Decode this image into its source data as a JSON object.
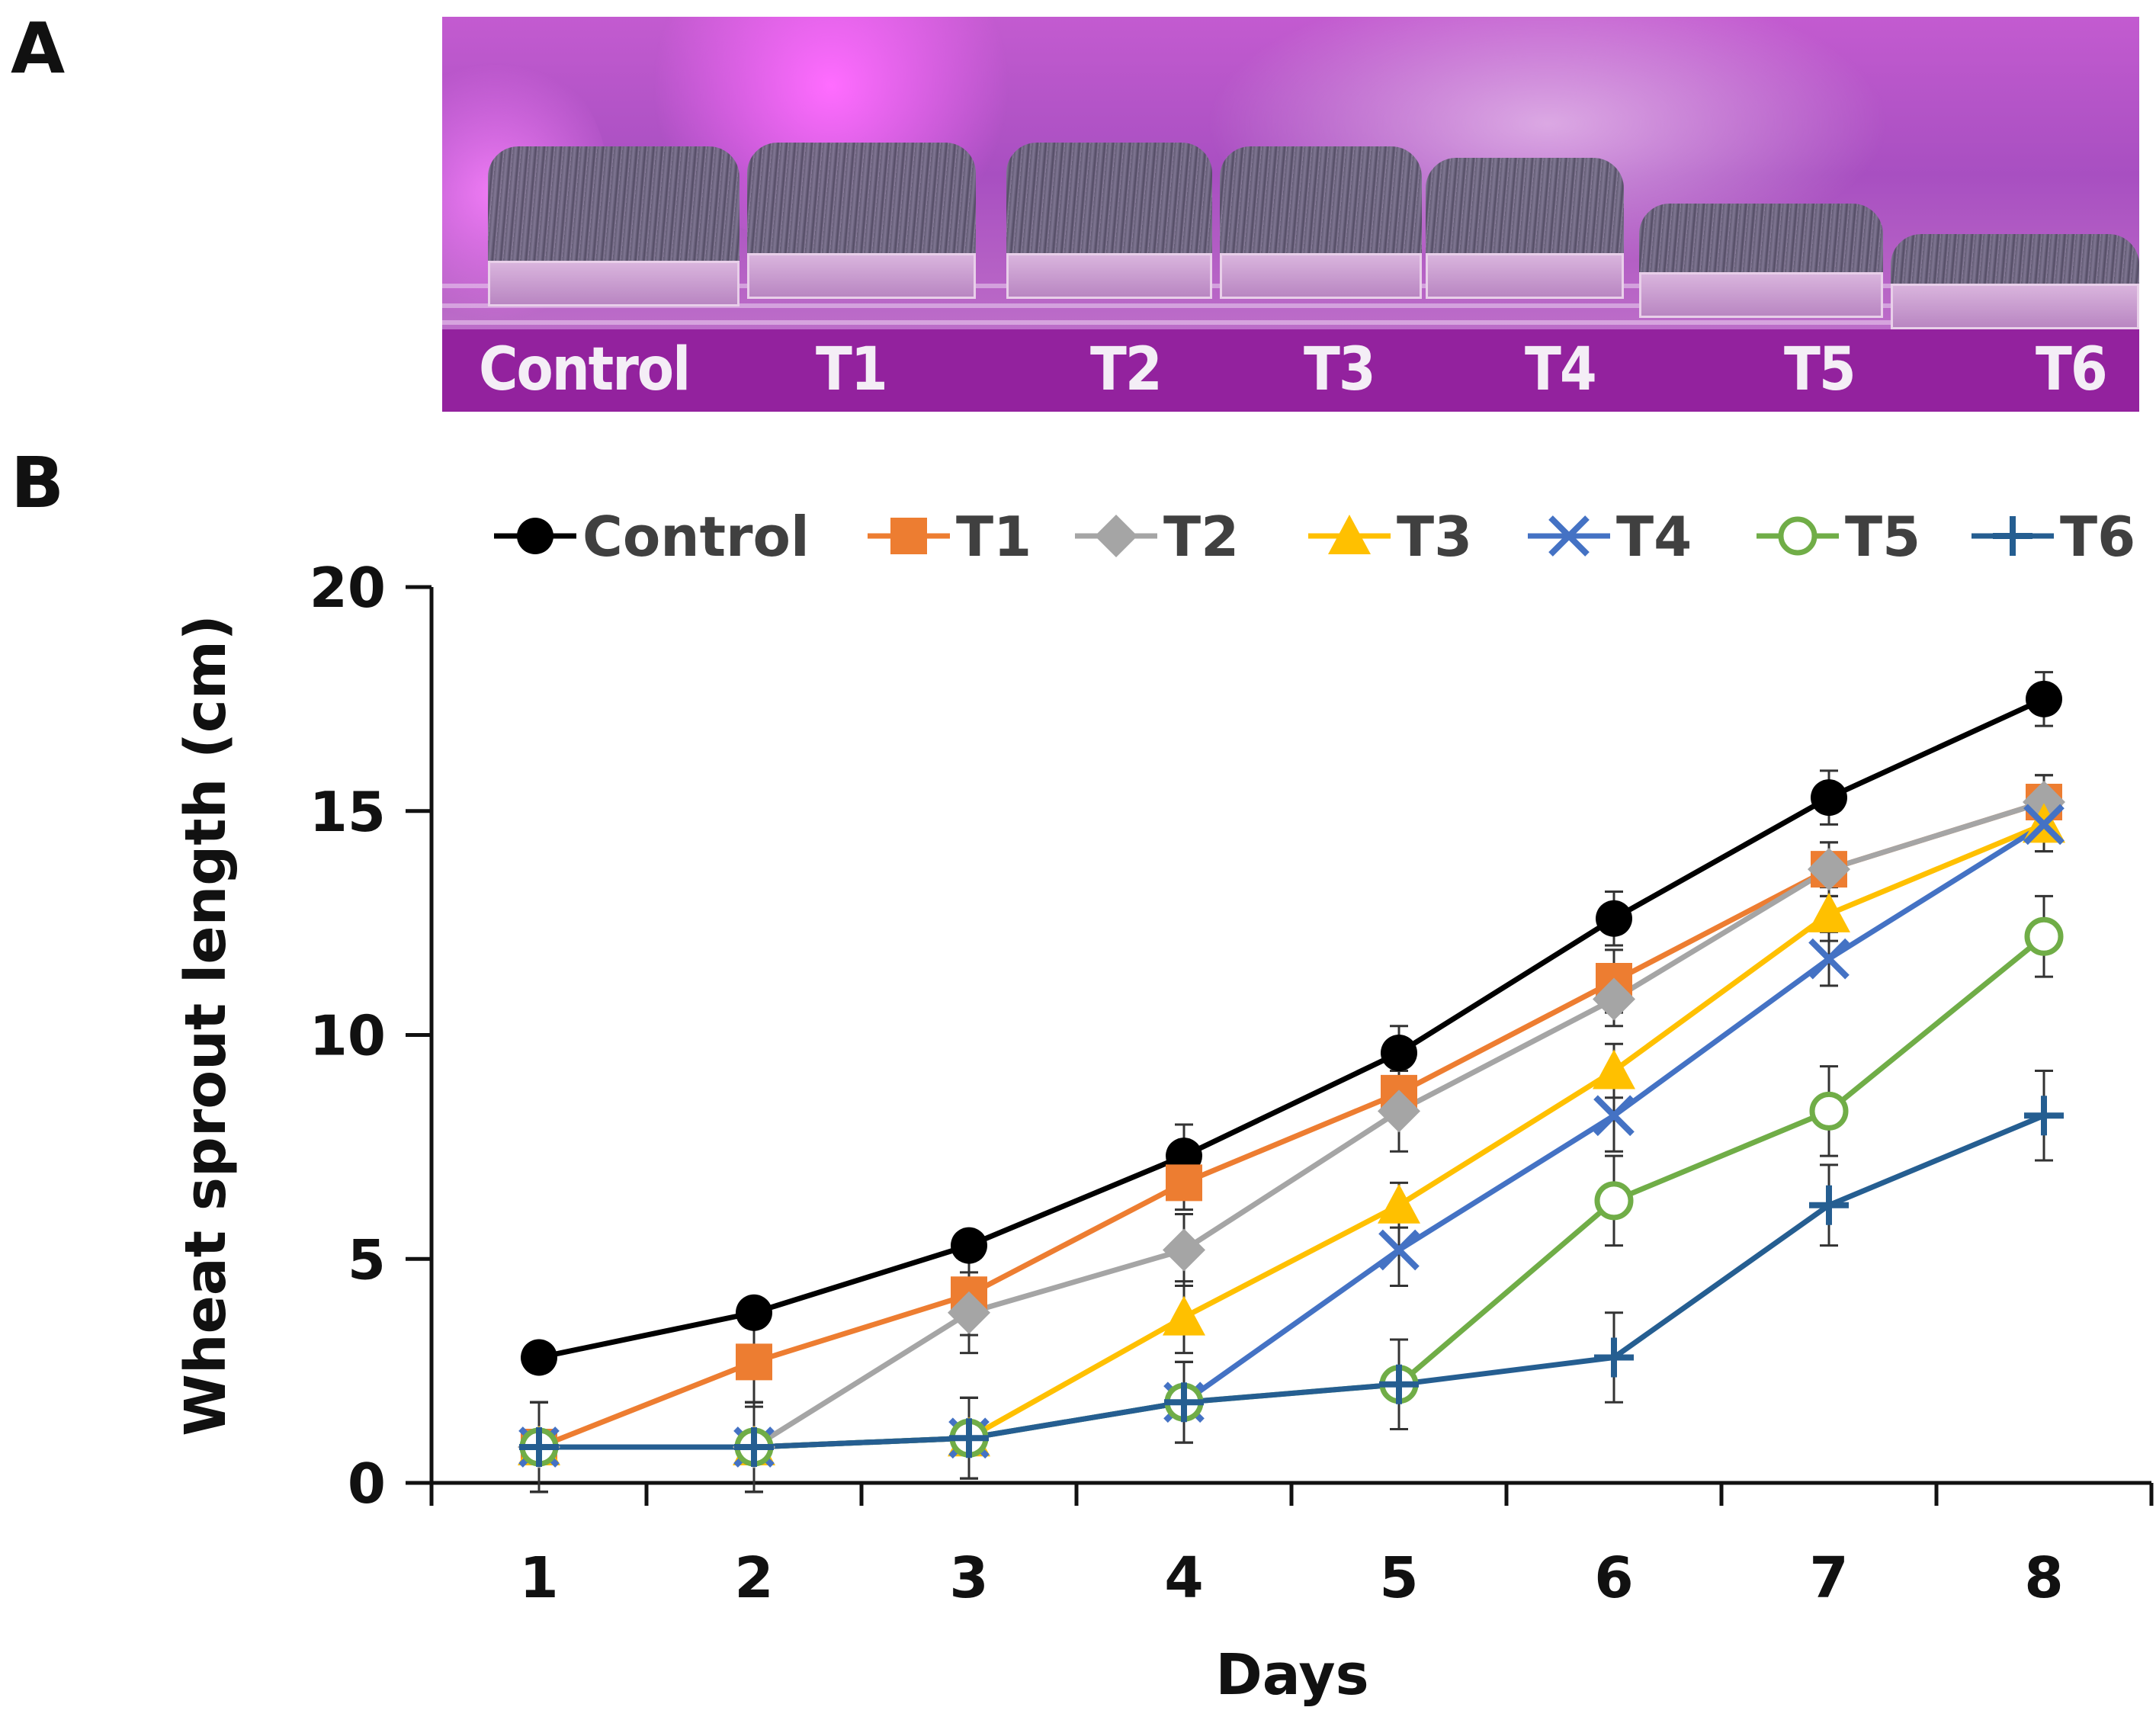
{
  "panels": {
    "a_letter": "A",
    "b_letter": "B"
  },
  "photo": {
    "labels": [
      "Control",
      "T1",
      "T2",
      "T3",
      "T4",
      "T5",
      "T6"
    ]
  },
  "chart_data": {
    "type": "line",
    "title": "",
    "xlabel": "Days",
    "ylabel": "Wheat sprout length (cm)",
    "x": [
      1,
      2,
      3,
      4,
      5,
      6,
      7,
      8
    ],
    "xlim": [
      0.5,
      8.5
    ],
    "ylim": [
      0,
      20
    ],
    "yticks": [
      0,
      5,
      10,
      15,
      20
    ],
    "legend_position": "top",
    "error_bars": true,
    "series": [
      {
        "name": "Control",
        "color": "#000000",
        "marker": "circle",
        "values": [
          2.8,
          3.8,
          5.3,
          7.3,
          9.6,
          12.6,
          15.3,
          17.5
        ],
        "errors": [
          0,
          0,
          0,
          0.7,
          0.6,
          0.6,
          0.6,
          0.6
        ]
      },
      {
        "name": "T1",
        "color": "#ED7D31",
        "marker": "square",
        "values": [
          0.8,
          2.7,
          4.2,
          6.7,
          8.7,
          11.2,
          13.7,
          15.2
        ],
        "errors": [
          1.0,
          1.0,
          0.9,
          0.6,
          0.6,
          0.7,
          0.6,
          0.6
        ]
      },
      {
        "name": "T2",
        "color": "#A5A5A5",
        "marker": "diamond",
        "values": [
          0.8,
          0.8,
          3.8,
          5.2,
          8.3,
          10.8,
          13.7,
          15.2
        ],
        "errors": [
          1.0,
          1.0,
          0.9,
          0.8,
          0.9,
          0.6,
          0.6,
          0.6
        ]
      },
      {
        "name": "T3",
        "color": "#FFC000",
        "marker": "triangle",
        "values": [
          0.8,
          0.8,
          1.0,
          3.7,
          6.2,
          9.2,
          12.7,
          14.7
        ],
        "errors": [
          1.0,
          1.0,
          0.9,
          0.8,
          0.5,
          0.6,
          0.6,
          0.6
        ]
      },
      {
        "name": "T4",
        "color": "#4472C4",
        "marker": "x",
        "values": [
          0.8,
          0.8,
          1.0,
          1.8,
          5.2,
          8.2,
          11.7,
          14.7
        ],
        "errors": [
          1.0,
          1.0,
          0.9,
          0.9,
          0.8,
          0.8,
          0.6,
          0.6
        ]
      },
      {
        "name": "T5",
        "color": "#70AD47",
        "marker": "open-circle",
        "values": [
          0.8,
          0.8,
          1.0,
          1.8,
          2.2,
          6.3,
          8.3,
          12.2
        ],
        "errors": [
          1.0,
          1.0,
          0.9,
          0.9,
          1.0,
          1.0,
          1.0,
          0.9
        ]
      },
      {
        "name": "T6",
        "color": "#255E91",
        "marker": "plus",
        "values": [
          0.8,
          0.8,
          1.0,
          1.8,
          2.2,
          2.8,
          6.2,
          8.2
        ],
        "errors": [
          1.0,
          1.0,
          0.9,
          0.9,
          1.0,
          1.0,
          0.9,
          1.0
        ]
      }
    ]
  }
}
